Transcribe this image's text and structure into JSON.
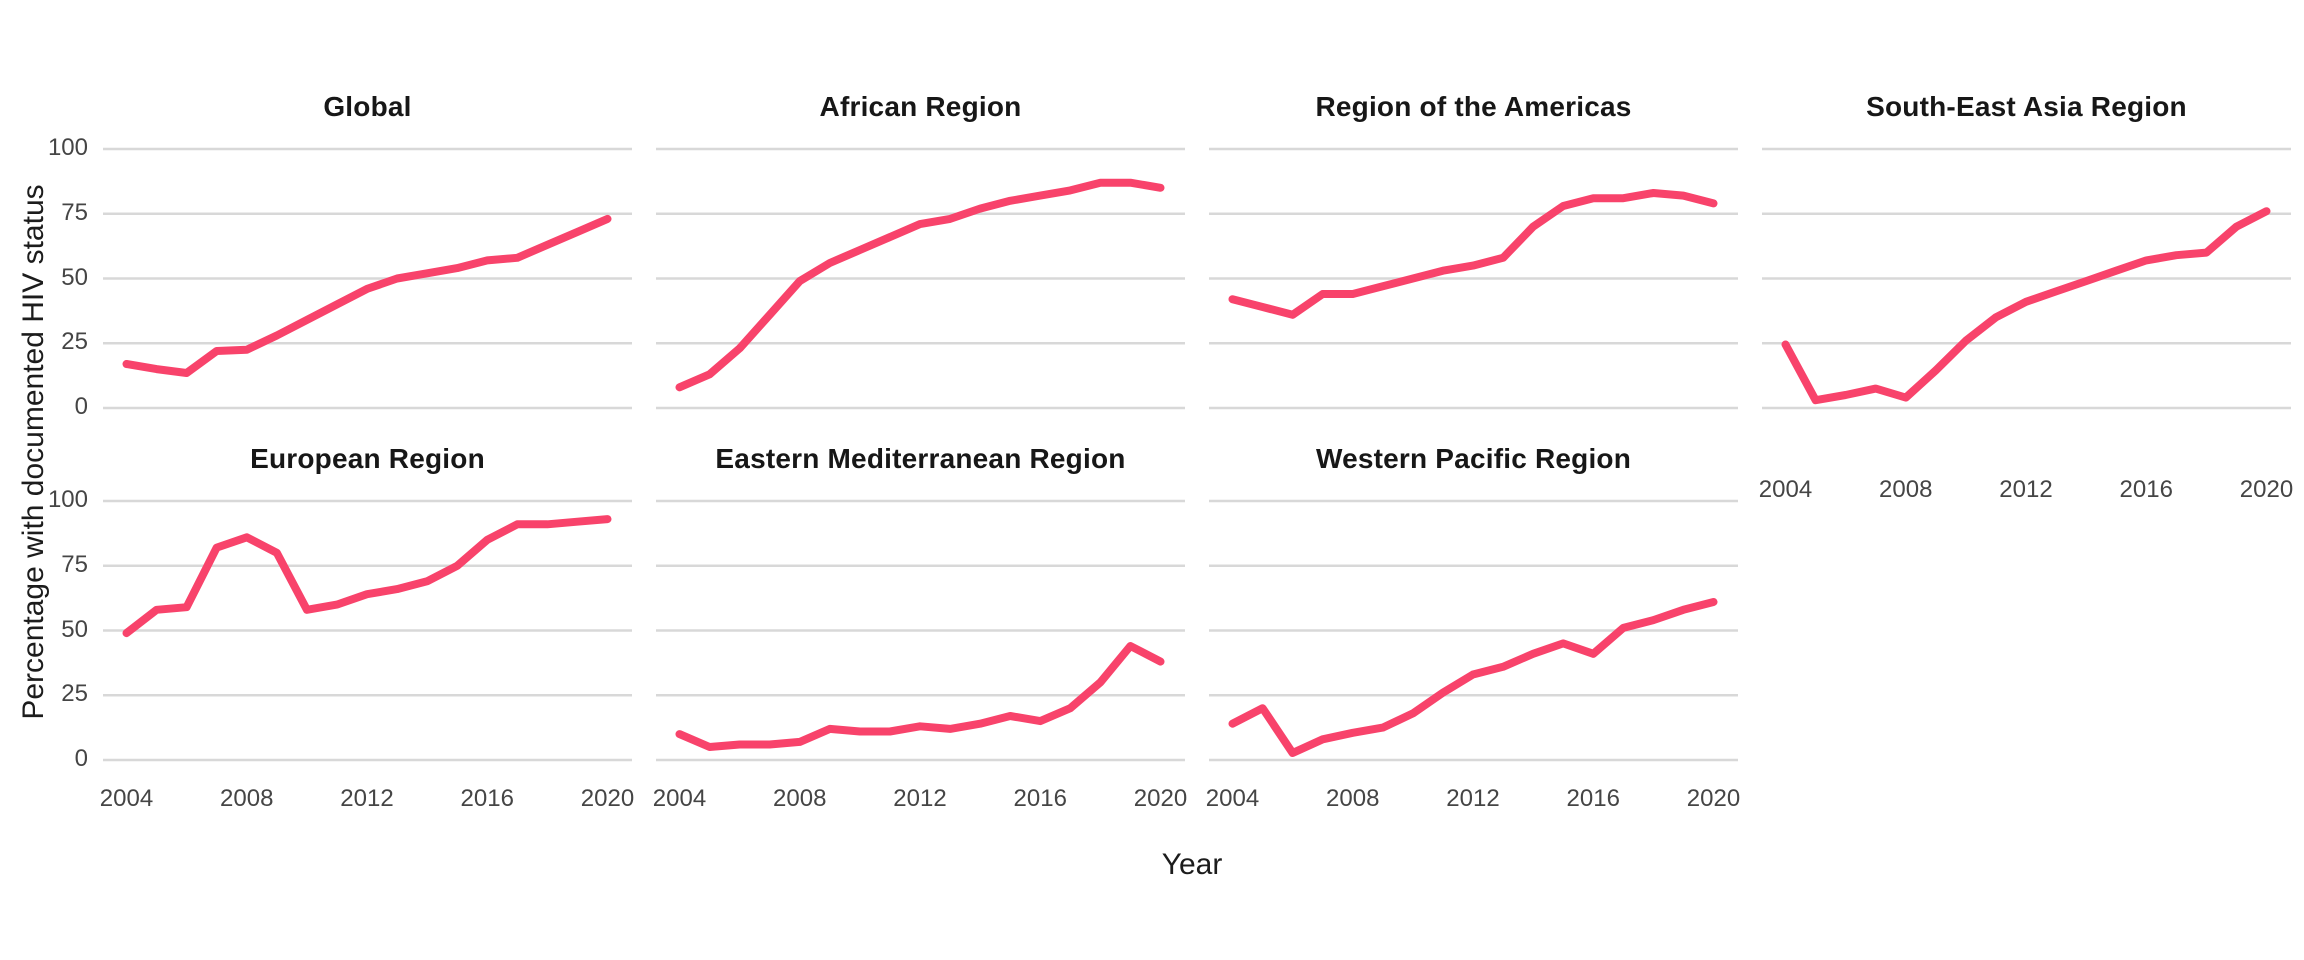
{
  "figure": {
    "x_axis_title": "Year",
    "y_axis_title": "Percentage with documented HIV status"
  },
  "chart_data": {
    "type": "line",
    "title": "",
    "xlabel": "Year",
    "ylabel": "Percentage with documented HIV status",
    "layout": "faceted small multiples: 2 rows x 4 columns (7 panels), shared x and y axes",
    "legend": "none",
    "grid": "horizontal major gridlines only",
    "x": [
      2004,
      2005,
      2006,
      2007,
      2008,
      2009,
      2010,
      2011,
      2012,
      2013,
      2014,
      2015,
      2016,
      2017,
      2018,
      2019,
      2020
    ],
    "x_tick_labels": [
      "2004",
      "2008",
      "2012",
      "2016",
      "2020"
    ],
    "x_ticks": [
      2004,
      2008,
      2012,
      2016,
      2020
    ],
    "ylim": [
      0,
      100
    ],
    "y_tick_labels": [
      "100",
      "75",
      "50",
      "25",
      "0"
    ],
    "y_ticks": [
      100,
      75,
      50,
      25,
      0
    ],
    "line_color": "#F8436B",
    "gridline_color": "#D8D8D8",
    "series": [
      {
        "name": "Global",
        "row": 0,
        "col": 0,
        "values": [
          17,
          15,
          13.5,
          22,
          22.5,
          28,
          34,
          40,
          46,
          50,
          52,
          54,
          57,
          58,
          63,
          68,
          73
        ]
      },
      {
        "name": "African Region",
        "row": 0,
        "col": 1,
        "values": [
          8,
          13,
          23,
          36,
          49,
          56,
          61,
          66,
          71,
          73,
          77,
          80,
          82,
          84,
          87,
          87,
          85
        ]
      },
      {
        "name": "Region of the Americas",
        "row": 0,
        "col": 2,
        "values": [
          42,
          39,
          36,
          44,
          44,
          47,
          50,
          53,
          55,
          58,
          70,
          78,
          81,
          81,
          83,
          82,
          79
        ]
      },
      {
        "name": "South-East Asia Region",
        "row": 0,
        "col": 3,
        "values": [
          24.5,
          3,
          5,
          7.5,
          4,
          14.5,
          26,
          35,
          41,
          45,
          49,
          53,
          57,
          59,
          60,
          70,
          76
        ]
      },
      {
        "name": "European Region",
        "row": 1,
        "col": 0,
        "values": [
          49,
          58,
          59,
          82,
          86,
          80,
          58,
          60,
          64,
          66,
          69,
          75,
          85,
          91,
          91,
          92,
          93
        ]
      },
      {
        "name": "Eastern Mediterranean Region",
        "row": 1,
        "col": 1,
        "values": [
          10,
          5,
          6,
          6,
          7,
          12,
          11,
          11,
          13,
          12,
          14,
          17,
          15,
          20,
          30,
          44,
          38
        ]
      },
      {
        "name": "Western Pacific Region",
        "row": 1,
        "col": 2,
        "values": [
          14,
          20,
          2.7,
          8,
          10.5,
          12.5,
          18,
          26,
          33,
          36,
          41,
          45,
          41,
          51,
          54,
          58,
          61
        ]
      }
    ]
  }
}
